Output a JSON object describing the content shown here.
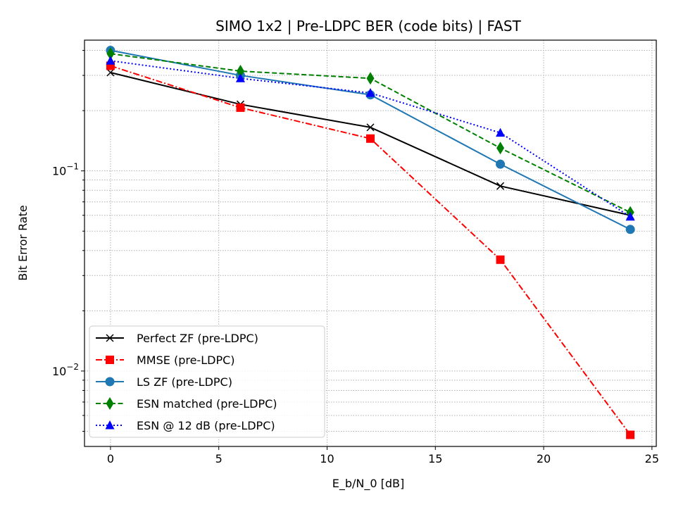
{
  "chart_data": {
    "type": "line",
    "title": "SIMO 1x2 | Pre-LDPC BER (code bits) | FAST",
    "xlabel": "E_b/N_0 [dB]",
    "ylabel": "Bit Error Rate",
    "xlim": [
      -1.2,
      25.2
    ],
    "ylim": [
      0.0042,
      0.45
    ],
    "yscale": "log",
    "x_ticks": [
      0,
      5,
      10,
      15,
      20,
      25
    ],
    "y_ticks": [
      {
        "value": 0.1,
        "base": "10",
        "exp": "−1"
      },
      {
        "value": 0.01,
        "base": "10",
        "exp": "−2"
      }
    ],
    "grid": true,
    "legend_position": "lower-left",
    "x": [
      0,
      6,
      12,
      18,
      24
    ],
    "series": [
      {
        "name": "Perfect ZF (pre-LDPC)",
        "values": [
          0.31,
          0.215,
          0.165,
          0.084,
          0.06
        ],
        "color": "#000000",
        "dash": "solid",
        "marker": "x"
      },
      {
        "name": "MMSE (pre-LDPC)",
        "values": [
          0.335,
          0.207,
          0.145,
          0.036,
          0.0048
        ],
        "color": "#ff0000",
        "dash": "dashdot",
        "marker": "square"
      },
      {
        "name": "LS ZF (pre-LDPC)",
        "values": [
          0.4,
          0.3,
          0.24,
          0.108,
          0.051
        ],
        "color": "#1f77b4",
        "dash": "solid",
        "marker": "circle"
      },
      {
        "name": "ESN matched (pre-LDPC)",
        "values": [
          0.385,
          0.315,
          0.29,
          0.13,
          0.062
        ],
        "color": "#008000",
        "dash": "dashed",
        "marker": "diamond"
      },
      {
        "name": "ESN @ 12 dB (pre-LDPC)",
        "values": [
          0.355,
          0.29,
          0.245,
          0.155,
          0.059
        ],
        "color": "#0000ff",
        "dash": "dotted",
        "marker": "triangle"
      }
    ]
  }
}
